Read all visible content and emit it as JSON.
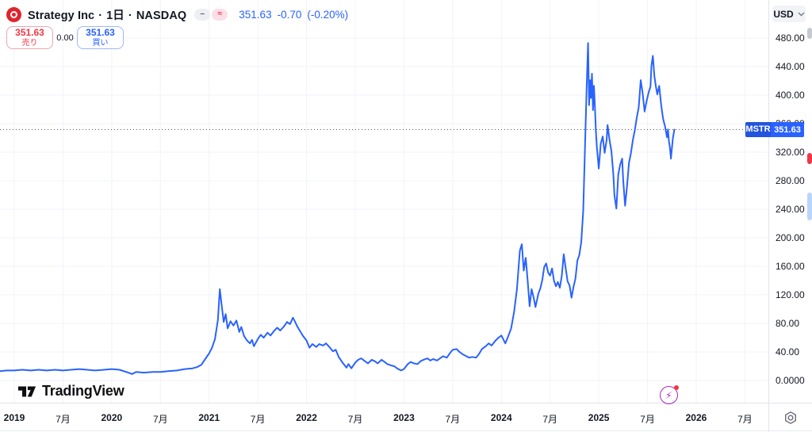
{
  "header": {
    "title": "Strategy Inc",
    "sep": "·",
    "interval": "1日",
    "exchange": "NASDAQ",
    "status_dash": "–",
    "status_approx": "≈",
    "last_price": "351.63",
    "change": "-0.70",
    "change_pct": "(-0.20%)",
    "accent_color": "#2962ff",
    "logo_color": "#e0242e"
  },
  "order_panel": {
    "sell_price": "351.63",
    "sell_label": "売り",
    "spread": "0.00",
    "buy_price": "351.63",
    "buy_label": "買い",
    "sell_color": "#f23645",
    "buy_color": "#2962ff"
  },
  "price_axis": {
    "currency": "USD",
    "label_symbol": "MSTR",
    "label_price": "351.63"
  },
  "footer": {
    "brand": "TradingView"
  },
  "chart_data": {
    "type": "line",
    "title": "Strategy Inc · 1日 · NASDAQ",
    "ylabel": "USD",
    "line_color": "#2962ff",
    "grid_color": "#f0f3fa",
    "dotted_line_color": "#555861",
    "current_price": 351.63,
    "ylim": [
      0,
      533
    ],
    "x_range_years": [
      2018.85,
      2026.6
    ],
    "legend_position": "none",
    "grid": true,
    "y_ticks": [
      {
        "v": 480,
        "label": "480.00"
      },
      {
        "v": 440,
        "label": "440.00"
      },
      {
        "v": 400,
        "label": "400.00"
      },
      {
        "v": 360,
        "label": "360.00"
      },
      {
        "v": 320,
        "label": "320.00"
      },
      {
        "v": 280,
        "label": "280.00"
      },
      {
        "v": 240,
        "label": "240.00"
      },
      {
        "v": 200,
        "label": "200.00"
      },
      {
        "v": 160,
        "label": "160.00"
      },
      {
        "v": 120,
        "label": "120.00"
      },
      {
        "v": 80,
        "label": "80.00"
      },
      {
        "v": 40,
        "label": "40.00"
      },
      {
        "v": 0,
        "label": "0.0000"
      }
    ],
    "x_ticks": [
      {
        "t": 2019.0,
        "label": "2019",
        "year": true
      },
      {
        "t": 2019.5,
        "label": "7月",
        "year": false
      },
      {
        "t": 2020.0,
        "label": "2020",
        "year": true
      },
      {
        "t": 2020.5,
        "label": "7月",
        "year": false
      },
      {
        "t": 2021.0,
        "label": "2021",
        "year": true
      },
      {
        "t": 2021.5,
        "label": "7月",
        "year": false
      },
      {
        "t": 2022.0,
        "label": "2022",
        "year": true
      },
      {
        "t": 2022.5,
        "label": "7月",
        "year": false
      },
      {
        "t": 2023.0,
        "label": "2023",
        "year": true
      },
      {
        "t": 2023.5,
        "label": "7月",
        "year": false
      },
      {
        "t": 2024.0,
        "label": "2024",
        "year": true
      },
      {
        "t": 2024.5,
        "label": "7月",
        "year": false
      },
      {
        "t": 2025.0,
        "label": "2025",
        "year": true
      },
      {
        "t": 2025.5,
        "label": "7月",
        "year": false
      },
      {
        "t": 2026.0,
        "label": "2026",
        "year": true
      },
      {
        "t": 2026.5,
        "label": "7月",
        "year": false
      }
    ],
    "series": [
      {
        "name": "MSTR",
        "points": [
          [
            2018.85,
            13
          ],
          [
            2018.92,
            14
          ],
          [
            2019.0,
            14
          ],
          [
            2019.08,
            15
          ],
          [
            2019.17,
            14
          ],
          [
            2019.25,
            15
          ],
          [
            2019.33,
            14
          ],
          [
            2019.42,
            15
          ],
          [
            2019.5,
            14
          ],
          [
            2019.58,
            15
          ],
          [
            2019.67,
            16
          ],
          [
            2019.75,
            15
          ],
          [
            2019.83,
            14
          ],
          [
            2019.92,
            15
          ],
          [
            2020.0,
            16
          ],
          [
            2020.08,
            15
          ],
          [
            2020.17,
            11
          ],
          [
            2020.21,
            9
          ],
          [
            2020.25,
            12
          ],
          [
            2020.33,
            11
          ],
          [
            2020.42,
            12
          ],
          [
            2020.5,
            12
          ],
          [
            2020.58,
            13
          ],
          [
            2020.67,
            14
          ],
          [
            2020.75,
            16
          ],
          [
            2020.83,
            17
          ],
          [
            2020.88,
            19
          ],
          [
            2020.92,
            22
          ],
          [
            2020.96,
            30
          ],
          [
            2021.0,
            38
          ],
          [
            2021.03,
            46
          ],
          [
            2021.06,
            58
          ],
          [
            2021.09,
            85
          ],
          [
            2021.11,
            128
          ],
          [
            2021.13,
            104
          ],
          [
            2021.15,
            82
          ],
          [
            2021.17,
            93
          ],
          [
            2021.19,
            73
          ],
          [
            2021.22,
            83
          ],
          [
            2021.25,
            77
          ],
          [
            2021.28,
            84
          ],
          [
            2021.31,
            68
          ],
          [
            2021.33,
            75
          ],
          [
            2021.36,
            62
          ],
          [
            2021.39,
            56
          ],
          [
            2021.42,
            52
          ],
          [
            2021.44,
            57
          ],
          [
            2021.46,
            48
          ],
          [
            2021.5,
            58
          ],
          [
            2021.53,
            64
          ],
          [
            2021.56,
            60
          ],
          [
            2021.6,
            67
          ],
          [
            2021.63,
            63
          ],
          [
            2021.67,
            70
          ],
          [
            2021.7,
            74
          ],
          [
            2021.73,
            70
          ],
          [
            2021.77,
            76
          ],
          [
            2021.8,
            82
          ],
          [
            2021.83,
            79
          ],
          [
            2021.86,
            88
          ],
          [
            2021.88,
            83
          ],
          [
            2021.9,
            77
          ],
          [
            2021.93,
            70
          ],
          [
            2021.96,
            63
          ],
          [
            2022.0,
            56
          ],
          [
            2022.03,
            46
          ],
          [
            2022.06,
            51
          ],
          [
            2022.1,
            47
          ],
          [
            2022.13,
            51
          ],
          [
            2022.17,
            49
          ],
          [
            2022.2,
            52
          ],
          [
            2022.24,
            46
          ],
          [
            2022.27,
            41
          ],
          [
            2022.3,
            43
          ],
          [
            2022.33,
            33
          ],
          [
            2022.37,
            25
          ],
          [
            2022.41,
            18
          ],
          [
            2022.43,
            23
          ],
          [
            2022.46,
            17
          ],
          [
            2022.5,
            25
          ],
          [
            2022.53,
            29
          ],
          [
            2022.56,
            31
          ],
          [
            2022.6,
            27
          ],
          [
            2022.63,
            24
          ],
          [
            2022.67,
            29
          ],
          [
            2022.7,
            27
          ],
          [
            2022.73,
            24
          ],
          [
            2022.77,
            29
          ],
          [
            2022.8,
            26
          ],
          [
            2022.83,
            23
          ],
          [
            2022.87,
            21
          ],
          [
            2022.9,
            20
          ],
          [
            2022.93,
            17
          ],
          [
            2022.97,
            14
          ],
          [
            2023.0,
            16
          ],
          [
            2023.04,
            23
          ],
          [
            2023.07,
            26
          ],
          [
            2023.1,
            24
          ],
          [
            2023.14,
            23
          ],
          [
            2023.17,
            27
          ],
          [
            2023.2,
            29
          ],
          [
            2023.24,
            31
          ],
          [
            2023.27,
            28
          ],
          [
            2023.3,
            30
          ],
          [
            2023.34,
            28
          ],
          [
            2023.37,
            31
          ],
          [
            2023.4,
            34
          ],
          [
            2023.44,
            32
          ],
          [
            2023.47,
            38
          ],
          [
            2023.5,
            43
          ],
          [
            2023.54,
            44
          ],
          [
            2023.57,
            40
          ],
          [
            2023.6,
            37
          ],
          [
            2023.64,
            34
          ],
          [
            2023.67,
            32
          ],
          [
            2023.7,
            33
          ],
          [
            2023.74,
            32
          ],
          [
            2023.77,
            37
          ],
          [
            2023.8,
            44
          ],
          [
            2023.84,
            48
          ],
          [
            2023.87,
            52
          ],
          [
            2023.9,
            49
          ],
          [
            2023.94,
            56
          ],
          [
            2023.97,
            60
          ],
          [
            2024.0,
            63
          ],
          [
            2024.04,
            52
          ],
          [
            2024.07,
            62
          ],
          [
            2024.1,
            73
          ],
          [
            2024.13,
            96
          ],
          [
            2024.16,
            128
          ],
          [
            2024.19,
            182
          ],
          [
            2024.21,
            191
          ],
          [
            2024.23,
            154
          ],
          [
            2024.25,
            172
          ],
          [
            2024.27,
            139
          ],
          [
            2024.29,
            104
          ],
          [
            2024.31,
            128
          ],
          [
            2024.33,
            117
          ],
          [
            2024.35,
            103
          ],
          [
            2024.38,
            122
          ],
          [
            2024.4,
            129
          ],
          [
            2024.42,
            141
          ],
          [
            2024.44,
            159
          ],
          [
            2024.46,
            164
          ],
          [
            2024.48,
            151
          ],
          [
            2024.5,
            147
          ],
          [
            2024.52,
            157
          ],
          [
            2024.54,
            140
          ],
          [
            2024.56,
            132
          ],
          [
            2024.58,
            138
          ],
          [
            2024.6,
            130
          ],
          [
            2024.62,
            147
          ],
          [
            2024.64,
            177
          ],
          [
            2024.66,
            157
          ],
          [
            2024.68,
            139
          ],
          [
            2024.7,
            133
          ],
          [
            2024.72,
            116
          ],
          [
            2024.74,
            131
          ],
          [
            2024.76,
            143
          ],
          [
            2024.78,
            168
          ],
          [
            2024.8,
            176
          ],
          [
            2024.82,
            194
          ],
          [
            2024.84,
            238
          ],
          [
            2024.86,
            334
          ],
          [
            2024.875,
            410
          ],
          [
            2024.89,
            473
          ],
          [
            2024.9,
            386
          ],
          [
            2024.91,
            421
          ],
          [
            2024.92,
            396
          ],
          [
            2024.93,
            430
          ],
          [
            2024.94,
            379
          ],
          [
            2024.95,
            413
          ],
          [
            2024.96,
            385
          ],
          [
            2024.97,
            349
          ],
          [
            2024.98,
            327
          ],
          [
            2025.0,
            297
          ],
          [
            2025.02,
            332
          ],
          [
            2025.04,
            342
          ],
          [
            2025.06,
            319
          ],
          [
            2025.08,
            337
          ],
          [
            2025.09,
            358
          ],
          [
            2025.11,
            337
          ],
          [
            2025.13,
            321
          ],
          [
            2025.15,
            287
          ],
          [
            2025.16,
            260
          ],
          [
            2025.18,
            241
          ],
          [
            2025.2,
            289
          ],
          [
            2025.22,
            303
          ],
          [
            2025.24,
            311
          ],
          [
            2025.25,
            281
          ],
          [
            2025.27,
            245
          ],
          [
            2025.29,
            273
          ],
          [
            2025.31,
            305
          ],
          [
            2025.33,
            319
          ],
          [
            2025.35,
            337
          ],
          [
            2025.37,
            351
          ],
          [
            2025.39,
            369
          ],
          [
            2025.41,
            383
          ],
          [
            2025.43,
            421
          ],
          [
            2025.45,
            403
          ],
          [
            2025.47,
            377
          ],
          [
            2025.49,
            391
          ],
          [
            2025.51,
            403
          ],
          [
            2025.53,
            412
          ],
          [
            2025.54,
            441
          ],
          [
            2025.555,
            455
          ],
          [
            2025.57,
            427
          ],
          [
            2025.585,
            413
          ],
          [
            2025.6,
            401
          ],
          [
            2025.62,
            413
          ],
          [
            2025.64,
            386
          ],
          [
            2025.66,
            367
          ],
          [
            2025.68,
            356
          ],
          [
            2025.7,
            341
          ],
          [
            2025.71,
            352
          ],
          [
            2025.72,
            335
          ],
          [
            2025.73,
            327
          ],
          [
            2025.74,
            311
          ],
          [
            2025.76,
            339
          ],
          [
            2025.775,
            351.63
          ]
        ]
      }
    ]
  }
}
